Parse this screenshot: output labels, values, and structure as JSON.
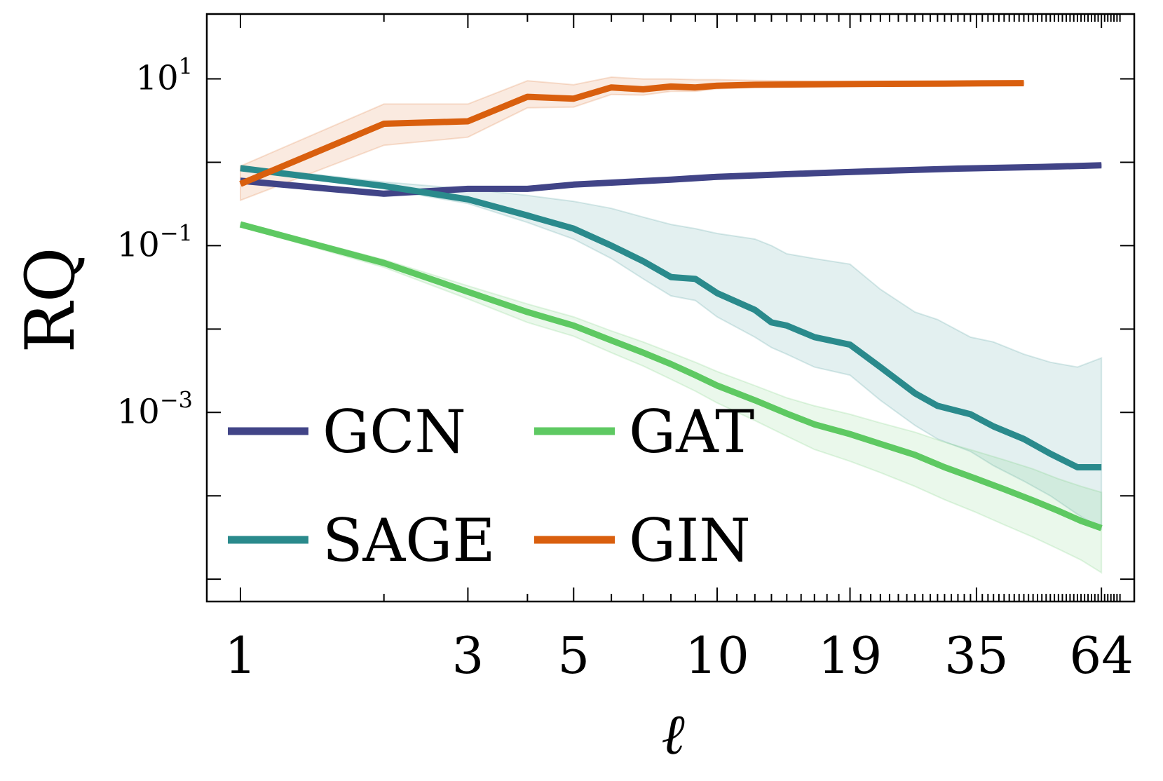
{
  "chart_data": {
    "type": "line",
    "title": "",
    "xlabel": "ℓ",
    "ylabel": "RQ",
    "xscale": "log",
    "yscale": "log",
    "xlim": [
      0.85,
      75
    ],
    "ylim": [
      5.4e-06,
      60
    ],
    "xticks": [
      {
        "value": 1,
        "label": "1"
      },
      {
        "value": 3,
        "label": "3"
      },
      {
        "value": 5,
        "label": "5"
      },
      {
        "value": 10,
        "label": "10"
      },
      {
        "value": 19,
        "label": "19"
      },
      {
        "value": 35,
        "label": "35"
      },
      {
        "value": 64,
        "label": "64"
      }
    ],
    "yticks": [
      {
        "value": 10,
        "base": "10",
        "exp": "1"
      },
      {
        "value": 0.1,
        "base": "10",
        "exp": "−1"
      },
      {
        "value": 0.001,
        "base": "10",
        "exp": "−3"
      }
    ],
    "legend": {
      "placement": "lower-left",
      "columns": 2,
      "order": [
        "GCN",
        "GAT",
        "SAGE",
        "GIN"
      ]
    },
    "series": [
      {
        "name": "GCN",
        "color": "#414487",
        "x": [
          1,
          2,
          3,
          4,
          5,
          8,
          10,
          16,
          24,
          32,
          48,
          64
        ],
        "y": [
          0.6,
          0.42,
          0.48,
          0.48,
          0.54,
          0.62,
          0.67,
          0.74,
          0.8,
          0.84,
          0.88,
          0.92
        ],
        "lower": [
          0.56,
          0.39,
          0.45,
          0.45,
          0.51,
          0.59,
          0.64,
          0.71,
          0.77,
          0.81,
          0.85,
          0.89
        ],
        "upper": [
          0.65,
          0.45,
          0.51,
          0.51,
          0.57,
          0.65,
          0.7,
          0.77,
          0.83,
          0.87,
          0.91,
          0.95
        ]
      },
      {
        "name": "SAGE",
        "color": "#2a8a8c",
        "x": [
          1,
          2,
          3,
          4,
          5,
          6,
          7,
          8,
          9,
          10,
          12,
          13,
          14,
          16,
          19,
          22,
          26,
          29,
          34,
          38,
          44,
          50,
          57,
          64
        ],
        "y": [
          0.85,
          0.52,
          0.36,
          0.23,
          0.16,
          0.1,
          0.065,
          0.042,
          0.04,
          0.027,
          0.017,
          0.012,
          0.011,
          0.008,
          0.0065,
          0.0035,
          0.0017,
          0.0012,
          0.00095,
          0.00068,
          0.00048,
          0.00032,
          0.00022,
          0.00022
        ],
        "lower": [
          0.8,
          0.48,
          0.32,
          0.19,
          0.12,
          0.07,
          0.04,
          0.025,
          0.022,
          0.014,
          0.008,
          0.006,
          0.005,
          0.0035,
          0.0028,
          0.0014,
          0.0007,
          0.00048,
          0.00034,
          0.00023,
          0.00015,
          0.0001,
          6e-05,
          4e-05
        ],
        "upper": [
          0.9,
          0.58,
          0.48,
          0.4,
          0.34,
          0.28,
          0.22,
          0.18,
          0.16,
          0.14,
          0.12,
          0.1,
          0.08,
          0.07,
          0.06,
          0.03,
          0.016,
          0.013,
          0.008,
          0.007,
          0.005,
          0.004,
          0.0035,
          0.0045
        ]
      },
      {
        "name": "GAT",
        "color": "#5ec962",
        "x": [
          1,
          2,
          3,
          4,
          5,
          6,
          7,
          8,
          9,
          10,
          12,
          14,
          16,
          19,
          22,
          26,
          30,
          35,
          40,
          46,
          52,
          58,
          64
        ],
        "y": [
          0.18,
          0.062,
          0.028,
          0.016,
          0.011,
          0.0073,
          0.0052,
          0.0038,
          0.0028,
          0.0021,
          0.0014,
          0.00097,
          0.00072,
          0.00055,
          0.00042,
          0.00031,
          0.00022,
          0.00016,
          0.00012,
          8.8e-05,
          6.6e-05,
          5e-05,
          4.1e-05
        ],
        "lower": [
          0.17,
          0.055,
          0.023,
          0.012,
          0.0082,
          0.0052,
          0.0036,
          0.0025,
          0.0018,
          0.0013,
          0.0008,
          0.00052,
          0.00036,
          0.00026,
          0.00019,
          0.00013,
          9e-05,
          6.3e-05,
          4.5e-05,
          3.2e-05,
          2.3e-05,
          1.7e-05,
          1.2e-05
        ],
        "upper": [
          0.19,
          0.068,
          0.033,
          0.02,
          0.014,
          0.0095,
          0.007,
          0.0052,
          0.004,
          0.0031,
          0.0021,
          0.0015,
          0.0012,
          0.00095,
          0.00075,
          0.00058,
          0.00044,
          0.00034,
          0.00027,
          0.00021,
          0.00016,
          0.00013,
          0.00011
        ]
      },
      {
        "name": "GIN",
        "color": "#d95f0e",
        "x": [
          1,
          2,
          3,
          4,
          5,
          6,
          7,
          8,
          9,
          10,
          12,
          16,
          20,
          30,
          44
        ],
        "y": [
          0.55,
          2.9,
          3.1,
          6.1,
          5.8,
          7.9,
          7.5,
          8.1,
          7.9,
          8.3,
          8.5,
          8.6,
          8.7,
          8.8,
          8.9
        ],
        "lower": [
          0.35,
          1.6,
          2.0,
          4.5,
          4.6,
          6.5,
          6.4,
          7.1,
          7.1,
          7.6,
          7.9,
          8.1,
          8.3,
          8.5,
          8.7
        ],
        "upper": [
          0.9,
          5.0,
          5.0,
          9.5,
          8.5,
          10.5,
          10.0,
          10.0,
          9.8,
          9.8,
          9.6,
          9.4,
          9.3,
          9.2,
          9.1
        ]
      }
    ]
  }
}
